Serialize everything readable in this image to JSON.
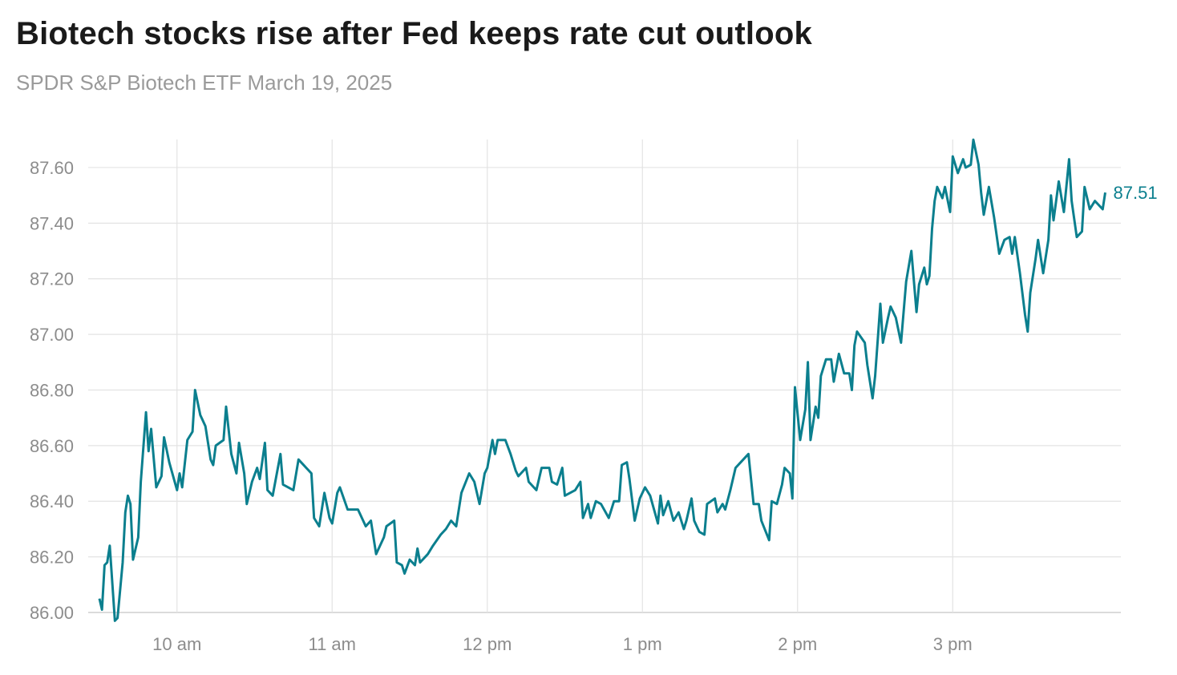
{
  "chart_data": {
    "type": "line",
    "title": "Biotech stocks rise after Fed keeps rate cut outlook",
    "subtitle": "SPDR S&P Biotech ETF March 19, 2025",
    "xlabel": "",
    "ylabel": "",
    "ylim": [
      86.0,
      87.7
    ],
    "xlim": [
      "9:30",
      "16:00"
    ],
    "grid": true,
    "y_ticks": [
      "86.00",
      "86.20",
      "86.40",
      "86.60",
      "86.80",
      "87.00",
      "87.20",
      "87.40",
      "87.60"
    ],
    "x_ticks": [
      {
        "label": "10 am",
        "time": "10:00"
      },
      {
        "label": "11 am",
        "time": "11:00"
      },
      {
        "label": "12 pm",
        "time": "12:00"
      },
      {
        "label": "1 pm",
        "time": "13:00"
      },
      {
        "label": "2 pm",
        "time": "14:00"
      },
      {
        "label": "3 pm",
        "time": "15:00"
      }
    ],
    "end_label": "87.51",
    "line_color": "#0b7f8e",
    "series": [
      {
        "points": [
          [
            "9:30",
            86.05
          ],
          [
            "9:31",
            86.01
          ],
          [
            "9:32",
            86.17
          ],
          [
            "9:33",
            86.18
          ],
          [
            "9:34",
            86.24
          ],
          [
            "9:36",
            85.97
          ],
          [
            "9:37",
            85.98
          ],
          [
            "9:39",
            86.18
          ],
          [
            "9:40",
            86.36
          ],
          [
            "9:41",
            86.42
          ],
          [
            "9:42",
            86.39
          ],
          [
            "9:43",
            86.19
          ],
          [
            "9:45",
            86.27
          ],
          [
            "9:46",
            86.47
          ],
          [
            "9:48",
            86.72
          ],
          [
            "9:49",
            86.58
          ],
          [
            "9:50",
            86.66
          ],
          [
            "9:52",
            86.45
          ],
          [
            "9:54",
            86.49
          ],
          [
            "9:55",
            86.63
          ],
          [
            "9:57",
            86.54
          ],
          [
            "10:00",
            86.44
          ],
          [
            "10:01",
            86.5
          ],
          [
            "10:02",
            86.45
          ],
          [
            "10:04",
            86.62
          ],
          [
            "10:06",
            86.65
          ],
          [
            "10:07",
            86.8
          ],
          [
            "10:09",
            86.71
          ],
          [
            "10:11",
            86.67
          ],
          [
            "10:13",
            86.55
          ],
          [
            "10:14",
            86.53
          ],
          [
            "10:15",
            86.6
          ],
          [
            "10:18",
            86.62
          ],
          [
            "10:19",
            86.74
          ],
          [
            "10:21",
            86.57
          ],
          [
            "10:23",
            86.5
          ],
          [
            "10:24",
            86.61
          ],
          [
            "10:26",
            86.5
          ],
          [
            "10:27",
            86.39
          ],
          [
            "10:29",
            86.47
          ],
          [
            "10:31",
            86.52
          ],
          [
            "10:32",
            86.48
          ],
          [
            "10:34",
            86.61
          ],
          [
            "10:35",
            86.44
          ],
          [
            "10:37",
            86.42
          ],
          [
            "10:40",
            86.57
          ],
          [
            "10:41",
            86.46
          ],
          [
            "10:45",
            86.44
          ],
          [
            "10:47",
            86.55
          ],
          [
            "10:52",
            86.5
          ],
          [
            "10:53",
            86.34
          ],
          [
            "10:55",
            86.31
          ],
          [
            "10:57",
            86.43
          ],
          [
            "10:59",
            86.34
          ],
          [
            "11:00",
            86.32
          ],
          [
            "11:02",
            86.43
          ],
          [
            "11:03",
            86.45
          ],
          [
            "11:06",
            86.37
          ],
          [
            "11:10",
            86.37
          ],
          [
            "11:13",
            86.31
          ],
          [
            "11:15",
            86.33
          ],
          [
            "11:17",
            86.21
          ],
          [
            "11:20",
            86.27
          ],
          [
            "11:21",
            86.31
          ],
          [
            "11:24",
            86.33
          ],
          [
            "11:25",
            86.18
          ],
          [
            "11:27",
            86.17
          ],
          [
            "11:28",
            86.14
          ],
          [
            "11:30",
            86.19
          ],
          [
            "11:32",
            86.17
          ],
          [
            "11:33",
            86.23
          ],
          [
            "11:34",
            86.18
          ],
          [
            "11:37",
            86.21
          ],
          [
            "11:39",
            86.24
          ],
          [
            "11:42",
            86.28
          ],
          [
            "11:44",
            86.3
          ],
          [
            "11:46",
            86.33
          ],
          [
            "11:48",
            86.31
          ],
          [
            "11:50",
            86.43
          ],
          [
            "11:53",
            86.5
          ],
          [
            "11:55",
            86.47
          ],
          [
            "11:57",
            86.39
          ],
          [
            "11:59",
            86.5
          ],
          [
            "12:00",
            86.52
          ],
          [
            "12:02",
            86.62
          ],
          [
            "12:03",
            86.57
          ],
          [
            "12:04",
            86.62
          ],
          [
            "12:07",
            86.62
          ],
          [
            "12:09",
            86.57
          ],
          [
            "12:11",
            86.51
          ],
          [
            "12:12",
            86.49
          ],
          [
            "12:15",
            86.52
          ],
          [
            "12:16",
            86.47
          ],
          [
            "12:19",
            86.44
          ],
          [
            "12:21",
            86.52
          ],
          [
            "12:24",
            86.52
          ],
          [
            "12:25",
            86.47
          ],
          [
            "12:27",
            86.46
          ],
          [
            "12:29",
            86.52
          ],
          [
            "12:30",
            86.42
          ],
          [
            "12:34",
            86.44
          ],
          [
            "12:36",
            86.47
          ],
          [
            "12:37",
            86.34
          ],
          [
            "12:39",
            86.39
          ],
          [
            "12:40",
            86.34
          ],
          [
            "12:42",
            86.4
          ],
          [
            "12:44",
            86.39
          ],
          [
            "12:47",
            86.34
          ],
          [
            "12:49",
            86.4
          ],
          [
            "12:51",
            86.4
          ],
          [
            "12:52",
            86.53
          ],
          [
            "12:54",
            86.54
          ],
          [
            "12:55",
            86.48
          ],
          [
            "12:57",
            86.33
          ],
          [
            "12:59",
            86.41
          ],
          [
            "13:01",
            86.45
          ],
          [
            "13:03",
            86.42
          ],
          [
            "13:06",
            86.32
          ],
          [
            "13:07",
            86.42
          ],
          [
            "13:08",
            86.35
          ],
          [
            "13:10",
            86.4
          ],
          [
            "13:12",
            86.33
          ],
          [
            "13:14",
            86.36
          ],
          [
            "13:16",
            86.3
          ],
          [
            "13:17",
            86.33
          ],
          [
            "13:19",
            86.41
          ],
          [
            "13:20",
            86.33
          ],
          [
            "13:22",
            86.29
          ],
          [
            "13:24",
            86.28
          ],
          [
            "13:25",
            86.39
          ],
          [
            "13:28",
            86.41
          ],
          [
            "13:29",
            86.36
          ],
          [
            "13:31",
            86.39
          ],
          [
            "13:32",
            86.37
          ],
          [
            "13:34",
            86.44
          ],
          [
            "13:36",
            86.52
          ],
          [
            "13:38",
            86.54
          ],
          [
            "13:40",
            86.56
          ],
          [
            "13:41",
            86.57
          ],
          [
            "13:43",
            86.39
          ],
          [
            "13:45",
            86.39
          ],
          [
            "13:46",
            86.33
          ],
          [
            "13:49",
            86.26
          ],
          [
            "13:50",
            86.4
          ],
          [
            "13:52",
            86.39
          ],
          [
            "13:54",
            86.46
          ],
          [
            "13:55",
            86.52
          ],
          [
            "13:57",
            86.5
          ],
          [
            "13:58",
            86.41
          ],
          [
            "13:59",
            86.81
          ],
          [
            "14:01",
            86.62
          ],
          [
            "14:03",
            86.73
          ],
          [
            "14:04",
            86.9
          ],
          [
            "14:05",
            86.62
          ],
          [
            "14:07",
            86.74
          ],
          [
            "14:08",
            86.7
          ],
          [
            "14:09",
            86.85
          ],
          [
            "14:11",
            86.91
          ],
          [
            "14:13",
            86.91
          ],
          [
            "14:14",
            86.83
          ],
          [
            "14:16",
            86.93
          ],
          [
            "14:18",
            86.86
          ],
          [
            "14:20",
            86.86
          ],
          [
            "14:21",
            86.8
          ],
          [
            "14:22",
            86.96
          ],
          [
            "14:23",
            87.01
          ],
          [
            "14:26",
            86.97
          ],
          [
            "14:27",
            86.89
          ],
          [
            "14:29",
            86.77
          ],
          [
            "14:30",
            86.85
          ],
          [
            "14:32",
            87.11
          ],
          [
            "14:33",
            86.97
          ],
          [
            "14:35",
            87.06
          ],
          [
            "14:36",
            87.1
          ],
          [
            "14:38",
            87.06
          ],
          [
            "14:40",
            86.97
          ],
          [
            "14:42",
            87.19
          ],
          [
            "14:44",
            87.3
          ],
          [
            "14:46",
            87.08
          ],
          [
            "14:47",
            87.18
          ],
          [
            "14:49",
            87.24
          ],
          [
            "14:50",
            87.18
          ],
          [
            "14:51",
            87.21
          ],
          [
            "14:52",
            87.38
          ],
          [
            "14:53",
            87.48
          ],
          [
            "14:54",
            87.53
          ],
          [
            "14:56",
            87.49
          ],
          [
            "14:57",
            87.53
          ],
          [
            "14:59",
            87.44
          ],
          [
            "15:00",
            87.64
          ],
          [
            "15:02",
            87.58
          ],
          [
            "15:04",
            87.63
          ],
          [
            "15:05",
            87.6
          ],
          [
            "15:07",
            87.61
          ],
          [
            "15:08",
            87.7
          ],
          [
            "15:10",
            87.61
          ],
          [
            "15:11",
            87.51
          ],
          [
            "15:12",
            87.43
          ],
          [
            "15:14",
            87.53
          ],
          [
            "15:16",
            87.42
          ],
          [
            "15:18",
            87.29
          ],
          [
            "15:20",
            87.34
          ],
          [
            "15:22",
            87.35
          ],
          [
            "15:23",
            87.29
          ],
          [
            "15:24",
            87.35
          ],
          [
            "15:26",
            87.22
          ],
          [
            "15:28",
            87.07
          ],
          [
            "15:29",
            87.01
          ],
          [
            "15:30",
            87.15
          ],
          [
            "15:32",
            87.27
          ],
          [
            "15:33",
            87.34
          ],
          [
            "15:35",
            87.22
          ],
          [
            "15:37",
            87.34
          ],
          [
            "15:38",
            87.5
          ],
          [
            "15:39",
            87.41
          ],
          [
            "15:41",
            87.55
          ],
          [
            "15:43",
            87.44
          ],
          [
            "15:45",
            87.63
          ],
          [
            "15:46",
            87.48
          ],
          [
            "15:48",
            87.35
          ],
          [
            "15:50",
            87.37
          ],
          [
            "15:51",
            87.53
          ],
          [
            "15:53",
            87.45
          ],
          [
            "15:55",
            87.48
          ],
          [
            "15:58",
            87.45
          ],
          [
            "15:59",
            87.51
          ]
        ]
      }
    ]
  }
}
